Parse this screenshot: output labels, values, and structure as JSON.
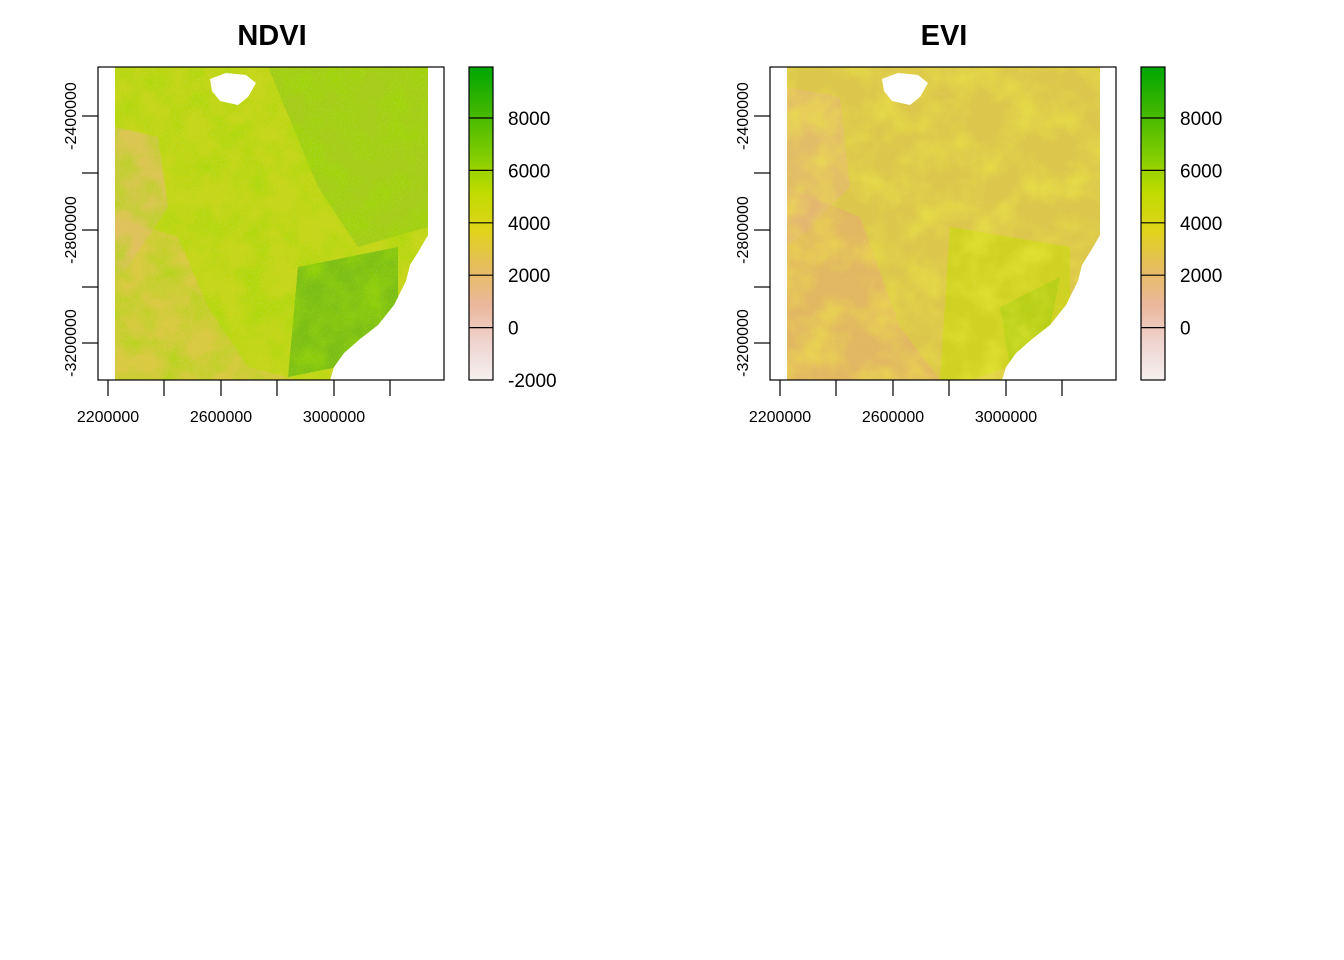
{
  "chart_data": [
    {
      "type": "heatmap",
      "title": "NDVI",
      "xlabel": "",
      "ylabel": "",
      "x_ticks": [
        2200000,
        2600000,
        3000000
      ],
      "x_tick_labels": [
        "2200000",
        "2600000",
        "3000000"
      ],
      "x_minor_ticks": [
        2400000,
        2800000,
        3200000
      ],
      "xlim": [
        2195000,
        3430000
      ],
      "y_ticks": [
        -2400000,
        -2800000,
        -3200000
      ],
      "y_tick_labels": [
        "-2400000",
        "-2800000",
        "-3200000"
      ],
      "y_minor_ticks": [
        -2600000,
        -3000000
      ],
      "ylim": [
        -3350000,
        -2220000
      ],
      "legend": {
        "placement": "right",
        "range": [
          -2000,
          10000
        ],
        "ticks": [
          -2000,
          0,
          2000,
          4000,
          6000,
          8000
        ],
        "tick_labels": [
          "-2000",
          "0",
          "2000",
          "4000",
          "6000",
          "8000"
        ]
      },
      "dominant_value_range": [
        3000,
        7000
      ]
    },
    {
      "type": "heatmap",
      "title": "EVI",
      "xlabel": "",
      "ylabel": "",
      "x_ticks": [
        2200000,
        2600000,
        3000000
      ],
      "x_tick_labels": [
        "2200000",
        "2600000",
        "3000000"
      ],
      "x_minor_ticks": [
        2400000,
        2800000,
        3200000
      ],
      "xlim": [
        2195000,
        3430000
      ],
      "y_ticks": [
        -2400000,
        -2800000,
        -3200000
      ],
      "y_tick_labels": [
        "-2400000",
        "-2800000",
        "-3200000"
      ],
      "y_minor_ticks": [
        -2600000,
        -3000000
      ],
      "ylim": [
        -3350000,
        -2220000
      ],
      "legend": {
        "placement": "right",
        "range": [
          -2000,
          10000
        ],
        "ticks": [
          0,
          2000,
          4000,
          6000,
          8000
        ],
        "tick_labels": [
          "0",
          "2000",
          "4000",
          "6000",
          "8000"
        ]
      },
      "dominant_value_range": [
        1500,
        4500
      ]
    }
  ],
  "colors": {
    "scale": [
      "#f2f2f2",
      "#eec1b6",
      "#e8b06d",
      "#e0c422",
      "#c1d800",
      "#73c300",
      "#00a600"
    ]
  }
}
